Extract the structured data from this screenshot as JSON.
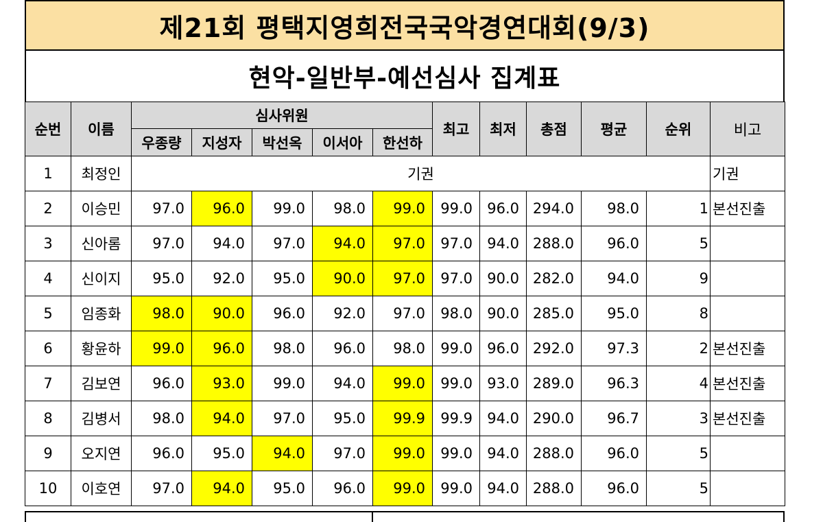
{
  "title": "제21회 평택지영희전국국악경연대회(9/3)",
  "subtitle": "현악-일반부-예선심사 집계표",
  "headers": {
    "no": "순번",
    "name": "이름",
    "judges_group": "심사위원",
    "judges": [
      "우종량",
      "지성자",
      "박선옥",
      "이서아",
      "한선하"
    ],
    "max": "최고",
    "min": "최저",
    "total": "총점",
    "avg": "평균",
    "rank": "순위",
    "note": "비고"
  },
  "colors": {
    "title_bg": "#fbe0a3",
    "header_bg": "#d9d9d9",
    "highlight": "#ffff00"
  },
  "forfeit": {
    "no": "1",
    "name": "최정인",
    "status": "기권",
    "note": "기권"
  },
  "rows": [
    {
      "no": "2",
      "name": "이승민",
      "scores": [
        "97.0",
        "96.0",
        "99.0",
        "98.0",
        "99.0"
      ],
      "hl": [
        false,
        true,
        false,
        false,
        true
      ],
      "max": "99.0",
      "min": "96.0",
      "total": "294.0",
      "avg": "98.0",
      "rank": "1",
      "note": "본선진출"
    },
    {
      "no": "3",
      "name": "신아롬",
      "scores": [
        "97.0",
        "94.0",
        "97.0",
        "94.0",
        "97.0"
      ],
      "hl": [
        false,
        false,
        false,
        true,
        true
      ],
      "max": "97.0",
      "min": "94.0",
      "total": "288.0",
      "avg": "96.0",
      "rank": "5",
      "note": ""
    },
    {
      "no": "4",
      "name": "신이지",
      "scores": [
        "95.0",
        "92.0",
        "95.0",
        "90.0",
        "97.0"
      ],
      "hl": [
        false,
        false,
        false,
        true,
        true
      ],
      "max": "97.0",
      "min": "90.0",
      "total": "282.0",
      "avg": "94.0",
      "rank": "9",
      "note": ""
    },
    {
      "no": "5",
      "name": "임종화",
      "scores": [
        "98.0",
        "90.0",
        "96.0",
        "92.0",
        "97.0"
      ],
      "hl": [
        true,
        true,
        false,
        false,
        false
      ],
      "max": "98.0",
      "min": "90.0",
      "total": "285.0",
      "avg": "95.0",
      "rank": "8",
      "note": ""
    },
    {
      "no": "6",
      "name": "황윤하",
      "scores": [
        "99.0",
        "96.0",
        "98.0",
        "96.0",
        "98.0"
      ],
      "hl": [
        true,
        true,
        false,
        false,
        false
      ],
      "max": "99.0",
      "min": "96.0",
      "total": "292.0",
      "avg": "97.3",
      "rank": "2",
      "note": "본선진출"
    },
    {
      "no": "7",
      "name": "김보연",
      "scores": [
        "96.0",
        "93.0",
        "99.0",
        "94.0",
        "99.0"
      ],
      "hl": [
        false,
        true,
        false,
        false,
        true
      ],
      "max": "99.0",
      "min": "93.0",
      "total": "289.0",
      "avg": "96.3",
      "rank": "4",
      "note": "본선진출"
    },
    {
      "no": "8",
      "name": "김병서",
      "scores": [
        "98.0",
        "94.0",
        "97.0",
        "95.0",
        "99.9"
      ],
      "hl": [
        false,
        true,
        false,
        false,
        true
      ],
      "max": "99.9",
      "min": "94.0",
      "total": "290.0",
      "avg": "96.7",
      "rank": "3",
      "note": "본선진출"
    },
    {
      "no": "9",
      "name": "오지연",
      "scores": [
        "96.0",
        "95.0",
        "94.0",
        "97.0",
        "99.0"
      ],
      "hl": [
        false,
        false,
        true,
        false,
        true
      ],
      "max": "99.0",
      "min": "94.0",
      "total": "288.0",
      "avg": "96.0",
      "rank": "5",
      "note": ""
    },
    {
      "no": "10",
      "name": "이호연",
      "scores": [
        "97.0",
        "94.0",
        "95.0",
        "96.0",
        "99.0"
      ],
      "hl": [
        false,
        true,
        false,
        false,
        true
      ],
      "max": "99.0",
      "min": "94.0",
      "total": "288.0",
      "avg": "96.0",
      "rank": "5",
      "note": ""
    }
  ]
}
